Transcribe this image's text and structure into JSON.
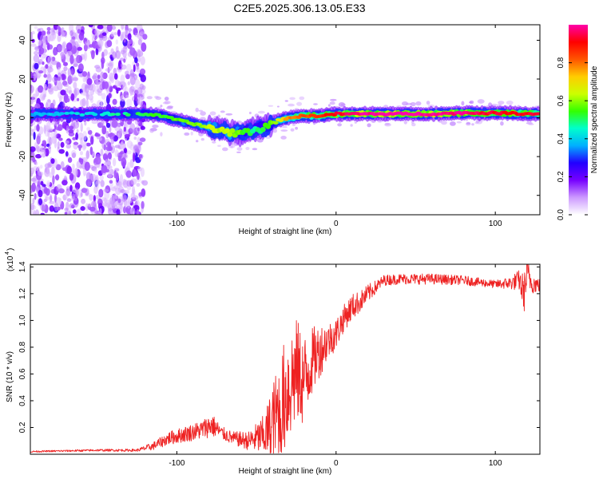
{
  "title": "C2E5.2025.306.13.05.E33",
  "chart_data": [
    {
      "type": "heatmap",
      "title": "C2E5.2025.306.13.05.E33",
      "xlabel": "Height of straight line (km)",
      "ylabel": "Frequency (Hz)",
      "xlim": [
        -192,
        128
      ],
      "ylim": [
        -50,
        48
      ],
      "xticks": [
        -100,
        0,
        100
      ],
      "yticks": [
        -40,
        -20,
        0,
        20,
        40
      ],
      "colorbar": {
        "label": "Normalized spectral amplitude",
        "range": [
          0,
          1
        ],
        "ticks": [
          0.0,
          0.2,
          0.4,
          0.6,
          0.8
        ],
        "tick_labels": [
          "0.0",
          "0.2",
          "0.4",
          "0.6",
          "0.8"
        ],
        "colormap": [
          "#ffffff",
          "#cc99ff",
          "#7700ff",
          "#2200ff",
          "#00b0ff",
          "#00ffcc",
          "#33ff00",
          "#ccff00",
          "#ffcc00",
          "#ff5500",
          "#ff0000",
          "#ff00aa"
        ]
      },
      "noise_region_x": [
        -192,
        -120
      ],
      "ridge": {
        "x": [
          -192,
          -150,
          -120,
          -110,
          -100,
          -90,
          -80,
          -70,
          -60,
          -55,
          -50,
          -45,
          -40,
          -35,
          -30,
          -20,
          -10,
          0,
          20,
          40,
          60,
          80,
          100,
          128
        ],
        "freq": [
          2,
          2,
          2,
          1,
          -1,
          -3,
          -5,
          -7,
          -8,
          -7,
          -6,
          -5,
          -3,
          -1,
          0,
          1,
          1,
          2,
          2,
          2,
          2,
          2.5,
          2.5,
          2
        ],
        "amplitude": [
          0.3,
          0.35,
          0.45,
          0.45,
          0.5,
          0.5,
          0.55,
          0.55,
          0.5,
          0.45,
          0.4,
          0.45,
          0.5,
          0.6,
          0.7,
          0.75,
          0.8,
          0.85,
          0.92,
          0.95,
          0.92,
          0.9,
          0.85,
          0.85
        ]
      }
    },
    {
      "type": "line",
      "xlabel": "Height of straight line (km)",
      "ylabel": "SNR (10 * v/v)",
      "y_scale_label": "(x10",
      "y_scale_exponent": "4",
      "xlim": [
        -192,
        128
      ],
      "ylim": [
        0,
        1.42
      ],
      "xticks": [
        -100,
        0,
        100
      ],
      "yticks": [
        0.2,
        0.4,
        0.6,
        0.8,
        1.0,
        1.2,
        1.4
      ],
      "ytick_labels": [
        "0.2",
        "0.4",
        "0.6",
        "0.8",
        "1.0",
        "1.2",
        "1.4"
      ],
      "color": "#ee2222",
      "series": [
        {
          "name": "SNR",
          "x": [
            -192,
            -150,
            -125,
            -115,
            -105,
            -95,
            -85,
            -78,
            -72,
            -65,
            -55,
            -45,
            -40,
            -35,
            -30,
            -25,
            -20,
            -15,
            -10,
            -5,
            0,
            5,
            10,
            15,
            20,
            25,
            30,
            40,
            60,
            80,
            100,
            110,
            115,
            118,
            120,
            123,
            128
          ],
          "value": [
            0.02,
            0.03,
            0.03,
            0.06,
            0.12,
            0.15,
            0.18,
            0.22,
            0.16,
            0.12,
            0.1,
            0.14,
            0.22,
            0.35,
            0.5,
            0.62,
            0.55,
            0.7,
            0.78,
            0.85,
            0.9,
            1.02,
            1.1,
            1.14,
            1.2,
            1.25,
            1.3,
            1.31,
            1.31,
            1.3,
            1.27,
            1.28,
            1.3,
            1.2,
            1.35,
            1.28,
            1.26
          ],
          "noise": [
            0.006,
            0.008,
            0.01,
            0.03,
            0.05,
            0.06,
            0.07,
            0.09,
            0.05,
            0.05,
            0.07,
            0.16,
            0.3,
            0.4,
            0.45,
            0.4,
            0.35,
            0.25,
            0.2,
            0.14,
            0.12,
            0.1,
            0.1,
            0.08,
            0.07,
            0.05,
            0.04,
            0.04,
            0.04,
            0.035,
            0.03,
            0.05,
            0.08,
            0.15,
            0.12,
            0.08,
            0.05
          ]
        }
      ]
    }
  ]
}
